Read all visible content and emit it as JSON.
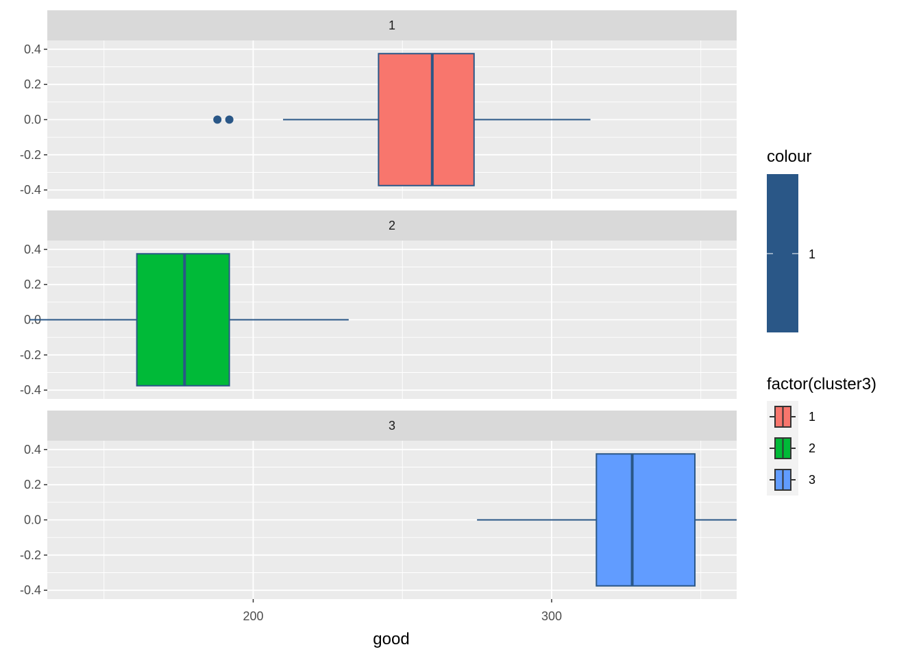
{
  "chart_data": {
    "type": "boxplot",
    "xlabel": "good",
    "ylabel": "",
    "xlim": [
      131,
      362
    ],
    "ylim": [
      -0.45,
      0.45
    ],
    "x_ticks": [
      200,
      300
    ],
    "x_tick_labels": [
      "200",
      "300"
    ],
    "y_ticks": [
      -0.4,
      -0.2,
      0.0,
      0.2,
      0.4
    ],
    "y_tick_labels": [
      "-0.4",
      "-0.2",
      "0.0",
      "0.2",
      "0.4"
    ],
    "grid": true,
    "facets": [
      {
        "label": "1",
        "box": {
          "whisker_low": 210,
          "q1": 242,
          "median": 260,
          "q3": 274,
          "whisker_high": 313
        },
        "outliers": [
          188,
          192
        ],
        "fill": "#F8766D"
      },
      {
        "label": "2",
        "box": {
          "whisker_low": 125,
          "q1": 161,
          "median": 177,
          "q3": 192,
          "whisker_high": 232
        },
        "outliers": [],
        "fill": "#00BA38"
      },
      {
        "label": "3",
        "box": {
          "whisker_low": 275,
          "q1": 315,
          "median": 327,
          "q3": 348,
          "whisker_high": 362
        },
        "outliers": [],
        "fill": "#619CFF"
      }
    ],
    "outline_color": "#2A5787",
    "legends": [
      {
        "title": "colour",
        "entries": [
          {
            "label": "1",
            "color": "#2A5787"
          }
        ],
        "placement": "right"
      },
      {
        "title": "factor(cluster3)",
        "entries": [
          {
            "label": "1",
            "color": "#F8766D"
          },
          {
            "label": "2",
            "color": "#00BA38"
          },
          {
            "label": "3",
            "color": "#619CFF"
          }
        ],
        "placement": "right"
      }
    ]
  }
}
